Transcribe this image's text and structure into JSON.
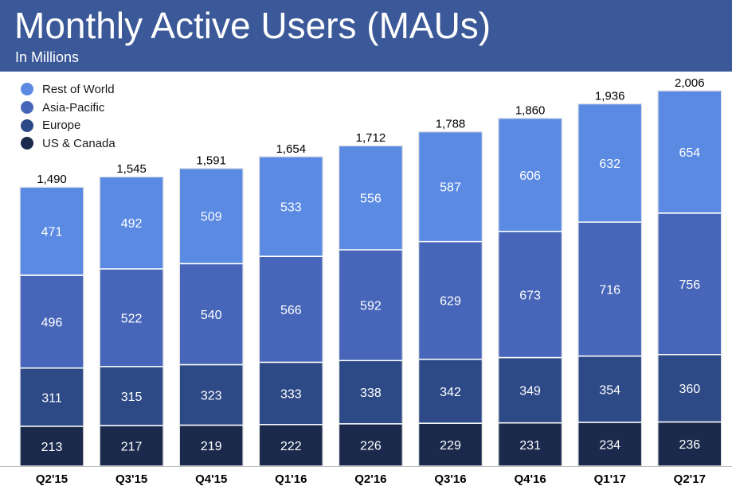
{
  "header": {
    "title": "Monthly Active Users (MAUs)",
    "subtitle": "In Millions"
  },
  "colors": {
    "header_bg": "#3b5998",
    "rest_of_world": "#5b8ae3",
    "asia_pacific": "#4766b9",
    "europe": "#2e4a86",
    "us_canada": "#1b2a4c"
  },
  "chart_data": {
    "type": "bar",
    "stacked": true,
    "title": "Monthly Active Users (MAUs)",
    "subtitle": "In Millions",
    "categories": [
      "Q2'15",
      "Q3'15",
      "Q4'15",
      "Q1'16",
      "Q2'16",
      "Q3'16",
      "Q4'16",
      "Q1'17",
      "Q2'17"
    ],
    "series": [
      {
        "name": "US & Canada",
        "color": "#1b2a4c",
        "values": [
          213,
          217,
          219,
          222,
          226,
          229,
          231,
          234,
          236
        ]
      },
      {
        "name": "Europe",
        "color": "#2e4a86",
        "values": [
          311,
          315,
          323,
          333,
          338,
          342,
          349,
          354,
          360
        ]
      },
      {
        "name": "Asia-Pacific",
        "color": "#4766b9",
        "values": [
          496,
          522,
          540,
          566,
          592,
          629,
          673,
          716,
          756
        ]
      },
      {
        "name": "Rest of World",
        "color": "#5b8ae3",
        "values": [
          471,
          492,
          509,
          533,
          556,
          587,
          606,
          632,
          654
        ]
      }
    ],
    "totals": [
      "1,490",
      "1,545",
      "1,591",
      "1,654",
      "1,712",
      "1,788",
      "1,860",
      "1,936",
      "2,006"
    ],
    "legend_order": [
      "Rest of World",
      "Asia-Pacific",
      "Europe",
      "US & Canada"
    ],
    "legend_position": "top-left",
    "grid": false,
    "ylim": [
      0,
      2006
    ]
  }
}
